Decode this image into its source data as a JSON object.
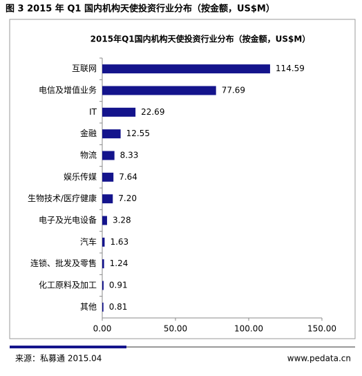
{
  "caption": "图 3 2015 年 Q1 国内机构天使投资行业分布（按金额，US$M）",
  "chart_data": {
    "type": "bar",
    "orientation": "horizontal",
    "title": "2015年Q1国内机构天使投资行业分布（按金额，US$M）",
    "categories": [
      "互联网",
      "电信及增值业务",
      "IT",
      "金融",
      "物流",
      "娱乐传媒",
      "生物技术/医疗健康",
      "电子及光电设备",
      "汽车",
      "连锁、批发及零售",
      "化工原料及加工",
      "其他"
    ],
    "values": [
      114.59,
      77.69,
      22.69,
      12.55,
      8.33,
      7.64,
      7.2,
      3.28,
      1.63,
      1.24,
      0.91,
      0.81
    ],
    "value_labels": [
      "114.59",
      "77.69",
      "22.69",
      "12.55",
      "8.33",
      "7.64",
      "7.20",
      "3.28",
      "1.63",
      "1.24",
      "0.91",
      "0.81"
    ],
    "color": "#14148c",
    "xlim": [
      0,
      150
    ],
    "xticks": [
      {
        "value": 0,
        "label": "0.00"
      },
      {
        "value": 50,
        "label": "50.00"
      },
      {
        "value": 100,
        "label": "100.00"
      },
      {
        "value": 150,
        "label": "150.00"
      }
    ],
    "grid": false
  },
  "footer": {
    "source": "来源：私募通 2015.04",
    "website": "www.pedata.cn"
  }
}
